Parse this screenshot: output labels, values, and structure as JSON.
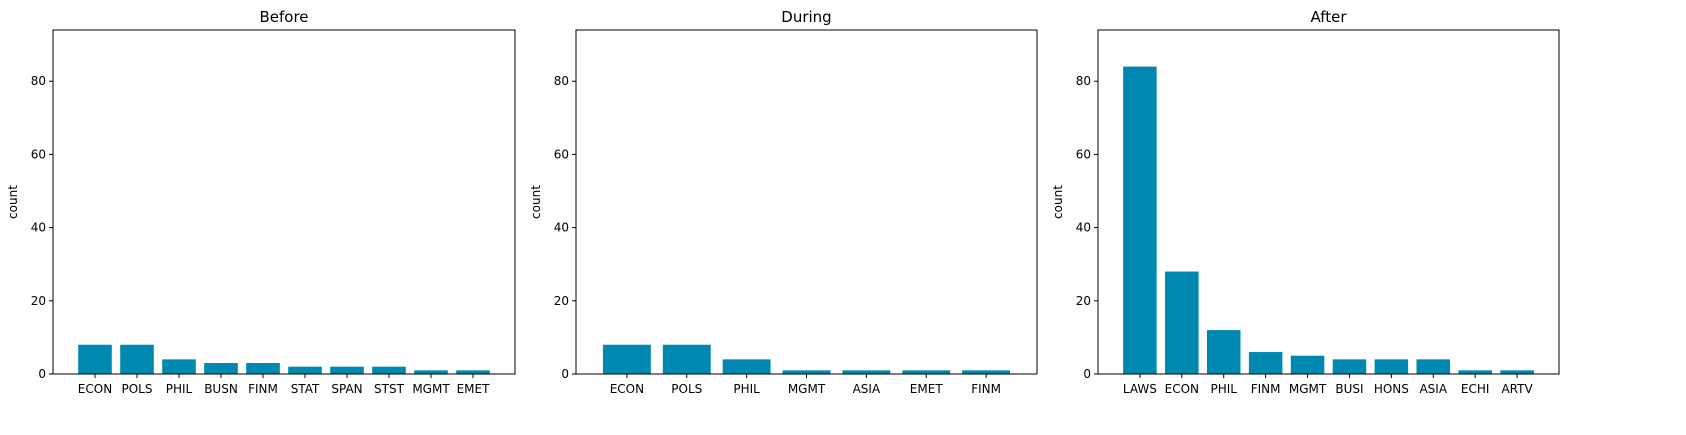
{
  "chart_data": [
    {
      "type": "bar",
      "title": "Before",
      "xlabel": "",
      "ylabel": "count",
      "ylim": [
        0,
        94
      ],
      "yticks": [
        0,
        20,
        40,
        60,
        80
      ],
      "grid": false,
      "color": "#0088b0",
      "categories": [
        "ECON",
        "POLS",
        "PHIL",
        "BUSN",
        "FINM",
        "STAT",
        "SPAN",
        "STST",
        "MGMT",
        "EMET"
      ],
      "values": [
        8,
        8,
        4,
        3,
        3,
        2,
        2,
        2,
        1,
        1
      ]
    },
    {
      "type": "bar",
      "title": "During",
      "xlabel": "",
      "ylabel": "count",
      "ylim": [
        0,
        94
      ],
      "yticks": [
        0,
        20,
        40,
        60,
        80
      ],
      "grid": false,
      "color": "#0088b0",
      "categories": [
        "ECON",
        "POLS",
        "PHIL",
        "MGMT",
        "ASIA",
        "EMET",
        "FINM"
      ],
      "values": [
        8,
        8,
        4,
        1,
        1,
        1,
        1
      ]
    },
    {
      "type": "bar",
      "title": "After",
      "xlabel": "",
      "ylabel": "count",
      "ylim": [
        0,
        94
      ],
      "yticks": [
        0,
        20,
        40,
        60,
        80
      ],
      "grid": false,
      "color": "#0088b0",
      "categories": [
        "LAWS",
        "ECON",
        "PHIL",
        "FINM",
        "MGMT",
        "BUSI",
        "HONS",
        "ASIA",
        "ECHI",
        "ARTV"
      ],
      "values": [
        84,
        28,
        12,
        6,
        5,
        4,
        4,
        4,
        1,
        1
      ]
    }
  ]
}
